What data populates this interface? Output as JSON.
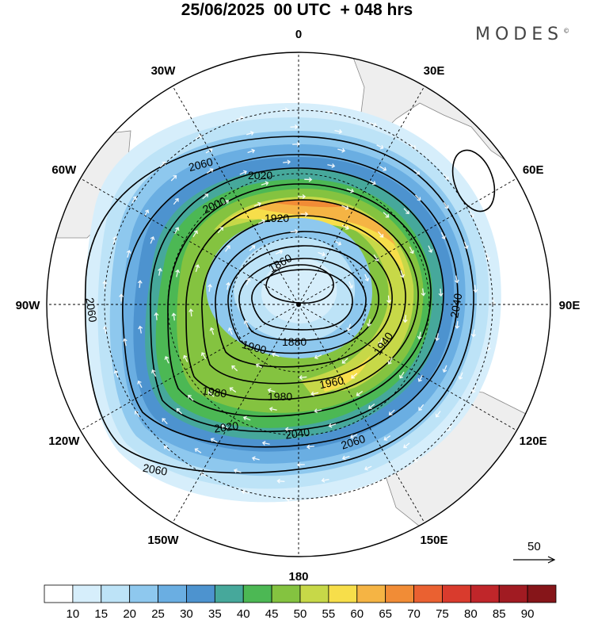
{
  "title": "25/06/2025  00 UTC  + 048 hrs",
  "brand": "MODES",
  "brand_mark": "©",
  "longitudes": [
    {
      "label": "0",
      "lon": 0
    },
    {
      "label": "30E",
      "lon": 30
    },
    {
      "label": "60E",
      "lon": 60
    },
    {
      "label": "90E",
      "lon": 90
    },
    {
      "label": "120E",
      "lon": 120
    },
    {
      "label": "150E",
      "lon": 150
    },
    {
      "label": "180",
      "lon": 180
    },
    {
      "label": "150W",
      "lon": -150
    },
    {
      "label": "120W",
      "lon": -120
    },
    {
      "label": "90W",
      "lon": -90
    },
    {
      "label": "60W",
      "lon": -60
    },
    {
      "label": "30W",
      "lon": -30
    }
  ],
  "contours": [
    {
      "label": "1860"
    },
    {
      "label": "1880"
    },
    {
      "label": "1900"
    },
    {
      "label": "1920"
    },
    {
      "label": "1940"
    },
    {
      "label": "1960"
    },
    {
      "label": "1980"
    },
    {
      "label": "2000"
    },
    {
      "label": "2020"
    },
    {
      "label": "2040"
    },
    {
      "label": "2060"
    }
  ],
  "vector_reference": {
    "label": "50"
  },
  "colorbar": {
    "ticks": [
      "10",
      "15",
      "20",
      "25",
      "30",
      "35",
      "40",
      "45",
      "50",
      "55",
      "60",
      "65",
      "70",
      "75",
      "80",
      "85",
      "90"
    ],
    "colors": [
      "#ffffff",
      "#d6eefb",
      "#bde3f7",
      "#8ec8ee",
      "#6aaee2",
      "#4d93cf",
      "#46a89b",
      "#4cb854",
      "#84c340",
      "#c7d848",
      "#f7de4a",
      "#f5b444",
      "#f18c36",
      "#ea6131",
      "#d93b2d",
      "#c0262a",
      "#a11b22",
      "#861519"
    ]
  },
  "colors": {
    "land": "#eeeeee",
    "coast": "#888888",
    "contour": "#000000",
    "wind_arrows": "#ffffff"
  }
}
